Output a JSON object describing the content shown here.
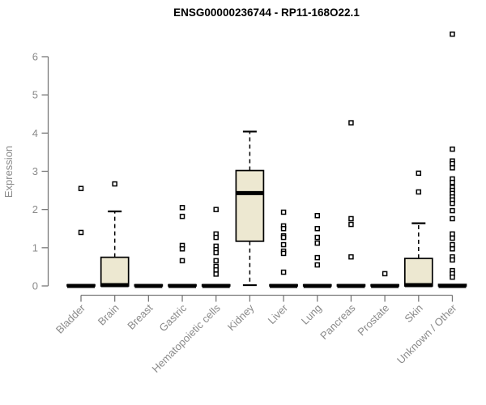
{
  "chart_data": {
    "type": "boxplot",
    "title": "ENSG00000236744 - RP11-168O22.1",
    "ylabel": "Expression",
    "xlabel": "",
    "ylim": [
      0,
      6.8
    ],
    "yticks": [
      0,
      1,
      2,
      3,
      4,
      5,
      6
    ],
    "grid": false,
    "legend": "none",
    "colors": {
      "box_fill": "#EDE8D1",
      "box_stroke": "#000000",
      "median": "#000000",
      "whisker": "#000000",
      "outlier": "#000000",
      "axis_line": "#7a7a7a",
      "tick_label": "#8a8a8a",
      "title": "#000000"
    },
    "categories": [
      "Bladder",
      "Brain",
      "Breast",
      "Gastric",
      "Hematopoietic cells",
      "Kidney",
      "Liver",
      "Lung",
      "Pancreas",
      "Prostate",
      "Skin",
      "Unknown / Other"
    ],
    "series": [
      {
        "category": "Bladder",
        "q1": 0,
        "median": 0,
        "q3": 0.03,
        "whisker_low": 0,
        "whisker_high": 0.03,
        "outliers": [
          2.55,
          1.4
        ]
      },
      {
        "category": "Brain",
        "q1": 0,
        "median": 0.02,
        "q3": 0.75,
        "whisker_low": 0,
        "whisker_high": 1.95,
        "outliers": [
          2.67
        ]
      },
      {
        "category": "Breast",
        "q1": 0,
        "median": 0,
        "q3": 0.03,
        "whisker_low": 0,
        "whisker_high": 0.03,
        "outliers": []
      },
      {
        "category": "Gastric",
        "q1": 0,
        "median": 0,
        "q3": 0.03,
        "whisker_low": 0,
        "whisker_high": 0.03,
        "outliers": [
          2.05,
          1.82,
          1.06,
          0.97,
          0.66
        ]
      },
      {
        "category": "Hematopoietic cells",
        "q1": 0,
        "median": 0,
        "q3": 0.03,
        "whisker_low": 0,
        "whisker_high": 0.03,
        "outliers": [
          2.0,
          1.36,
          1.27,
          1.04,
          0.95,
          0.87,
          0.66,
          0.51,
          0.42,
          0.31
        ]
      },
      {
        "category": "Kidney",
        "q1": 1.17,
        "median": 2.43,
        "q3": 3.02,
        "whisker_low": 0.02,
        "whisker_high": 4.04,
        "outliers": []
      },
      {
        "category": "Liver",
        "q1": 0,
        "median": 0,
        "q3": 0.03,
        "whisker_low": 0,
        "whisker_high": 0.03,
        "outliers": [
          1.93,
          1.57,
          1.5,
          1.31,
          1.27,
          1.08,
          0.91,
          0.85,
          0.36
        ]
      },
      {
        "category": "Lung",
        "q1": 0,
        "median": 0,
        "q3": 0.03,
        "whisker_low": 0,
        "whisker_high": 0.03,
        "outliers": [
          1.84,
          1.5,
          1.27,
          1.12,
          0.74,
          0.55
        ]
      },
      {
        "category": "Pancreas",
        "q1": 0,
        "median": 0,
        "q3": 0.03,
        "whisker_low": 0,
        "whisker_high": 0.03,
        "outliers": [
          4.27,
          1.76,
          1.61,
          0.76
        ]
      },
      {
        "category": "Prostate",
        "q1": 0,
        "median": 0,
        "q3": 0.03,
        "whisker_low": 0,
        "whisker_high": 0.03,
        "outliers": [
          0.32
        ]
      },
      {
        "category": "Skin",
        "q1": 0,
        "median": 0.02,
        "q3": 0.72,
        "whisker_low": 0,
        "whisker_high": 1.64,
        "outliers": [
          2.95,
          2.46
        ]
      },
      {
        "category": "Unknown / Other",
        "q1": 0,
        "median": 0,
        "q3": 0.04,
        "whisker_low": 0,
        "whisker_high": 0.04,
        "outliers": [
          6.59,
          3.58,
          3.27,
          3.2,
          3.09,
          2.8,
          2.71,
          2.58,
          2.5,
          2.42,
          2.33,
          2.25,
          2.16,
          1.97,
          1.76,
          1.36,
          1.25,
          1.08,
          0.97,
          0.76,
          0.68,
          0.4,
          0.32,
          0.23
        ]
      }
    ]
  }
}
